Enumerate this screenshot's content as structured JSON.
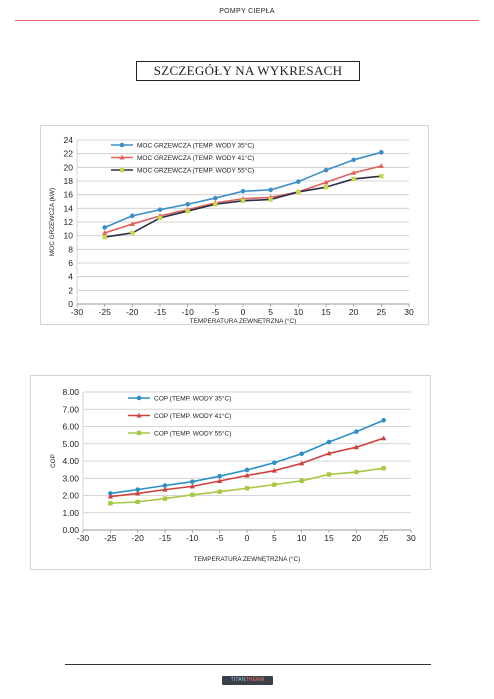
{
  "header": {
    "title": "POMPY CIEPŁA"
  },
  "section": {
    "title": "SZCZEGÓŁY NA WYKRESACH"
  },
  "footer": {
    "logo_left": "TITAN",
    "logo_right": "THERM"
  },
  "chart_data": [
    {
      "type": "line",
      "xlabel": "TEMPERATURA ZEWNĘTRZNA (°C)",
      "ylabel": "MOC GRZEWCZA (kW)",
      "xlim": [
        -30,
        30
      ],
      "ylim": [
        0,
        24
      ],
      "xticks": [
        -30,
        -25,
        -20,
        -15,
        -10,
        -5,
        0,
        5,
        10,
        15,
        20,
        25,
        30
      ],
      "yticks": [
        0,
        2,
        4,
        6,
        8,
        10,
        12,
        14,
        16,
        18,
        20,
        22,
        24
      ],
      "tick_labels_x": [
        "-30",
        "-25",
        "-20",
        "-15",
        "-10",
        "-5",
        "0",
        "5",
        "10",
        "15",
        "20",
        "25",
        "30"
      ],
      "tick_labels_y": [
        "0",
        "2",
        "4",
        "6",
        "8",
        "10",
        "12",
        "14",
        "16",
        "18",
        "20",
        "22",
        "24"
      ],
      "grid": "horizontal",
      "legend_position": "top-left",
      "x": [
        -25,
        -20,
        -15,
        -10,
        -5,
        0,
        5,
        10,
        15,
        20,
        25
      ],
      "series": [
        {
          "name": "MOC GRZEWCZA (TEMP. WODY 35°C)",
          "color": "#3a8fcb",
          "marker": "circle",
          "values": [
            11.2,
            12.9,
            13.8,
            14.6,
            15.5,
            16.5,
            16.7,
            17.9,
            19.6,
            21.1,
            22.2
          ]
        },
        {
          "name": "MOC GRZEWCZA (TEMP. WODY 41°C)",
          "color": "#e0625a",
          "marker": "triangle",
          "values": [
            10.4,
            11.7,
            12.9,
            13.8,
            14.8,
            15.4,
            15.6,
            16.4,
            17.8,
            19.2,
            20.2
          ]
        },
        {
          "name": "MOC GRZEWCZA (TEMP. WODY 55°C)",
          "color": "#2b2f4b",
          "marker": "square-lime",
          "values": [
            9.8,
            10.4,
            12.6,
            13.6,
            14.6,
            15.1,
            15.3,
            16.4,
            17.1,
            18.3,
            18.7
          ]
        }
      ]
    },
    {
      "type": "line",
      "xlabel": "TEMPERATURA ZEWNĘTRZNA (°C)",
      "ylabel": "COP",
      "xlim": [
        -30,
        30
      ],
      "ylim": [
        0,
        8
      ],
      "xticks": [
        -30,
        -25,
        -20,
        -15,
        -10,
        -5,
        0,
        5,
        10,
        15,
        20,
        25,
        30
      ],
      "yticks": [
        0,
        1,
        2,
        3,
        4,
        5,
        6,
        7,
        8
      ],
      "tick_labels_x": [
        "-30",
        "-25",
        "-20",
        "-15",
        "-10",
        "-5",
        "0",
        "5",
        "10",
        "15",
        "20",
        "25",
        "30"
      ],
      "tick_labels_y": [
        "0.00",
        "1.00",
        "2.00",
        "3.00",
        "4.00",
        "5.00",
        "6.00",
        "7.00",
        "8.00"
      ],
      "grid": "horizontal",
      "legend_position": "top-left",
      "x": [
        -25,
        -20,
        -15,
        -10,
        -5,
        0,
        5,
        10,
        15,
        20,
        25
      ],
      "series": [
        {
          "name": "COP (TEMP. WODY 35°C)",
          "color": "#2b8fc9",
          "marker": "circle",
          "values": [
            2.12,
            2.34,
            2.58,
            2.8,
            3.12,
            3.48,
            3.9,
            4.42,
            5.1,
            5.7,
            6.36
          ]
        },
        {
          "name": "COP (TEMP. WODY 41°C)",
          "color": "#d0413e",
          "marker": "triangle",
          "values": [
            1.94,
            2.12,
            2.34,
            2.53,
            2.84,
            3.16,
            3.44,
            3.86,
            4.44,
            4.8,
            5.32
          ]
        },
        {
          "name": "COP (TEMP. WODY 55°C)",
          "color": "#a8c844",
          "marker": "square",
          "values": [
            1.55,
            1.63,
            1.82,
            2.04,
            2.22,
            2.42,
            2.63,
            2.85,
            3.22,
            3.36,
            3.58
          ]
        }
      ]
    }
  ]
}
